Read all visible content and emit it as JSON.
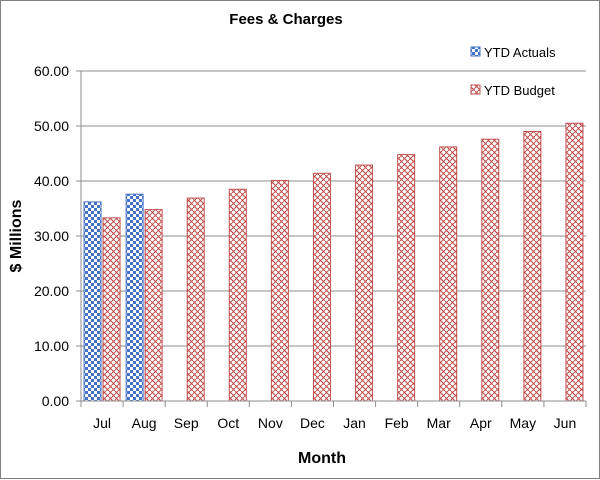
{
  "chart_data": {
    "type": "bar",
    "title": "Fees & Charges",
    "xlabel": "Month",
    "ylabel": "$ Millions",
    "categories": [
      "Jul",
      "Aug",
      "Sep",
      "Oct",
      "Nov",
      "Dec",
      "Jan",
      "Feb",
      "Mar",
      "Apr",
      "May",
      "Jun"
    ],
    "series": [
      {
        "name": "YTD Actuals",
        "color": "#4472c4",
        "values": [
          36.2,
          37.6,
          null,
          null,
          null,
          null,
          null,
          null,
          null,
          null,
          null,
          null
        ]
      },
      {
        "name": "YTD Budget",
        "color": "#c0504d",
        "values": [
          33.3,
          34.8,
          36.9,
          38.5,
          40.1,
          41.4,
          42.9,
          44.8,
          46.2,
          47.6,
          49.0,
          50.5
        ]
      }
    ],
    "ylim": [
      0,
      60
    ],
    "yticks": [
      "0.00",
      "10.00",
      "20.00",
      "30.00",
      "40.00",
      "50.00",
      "60.00"
    ],
    "grid": true,
    "legend_position": "top-right"
  }
}
